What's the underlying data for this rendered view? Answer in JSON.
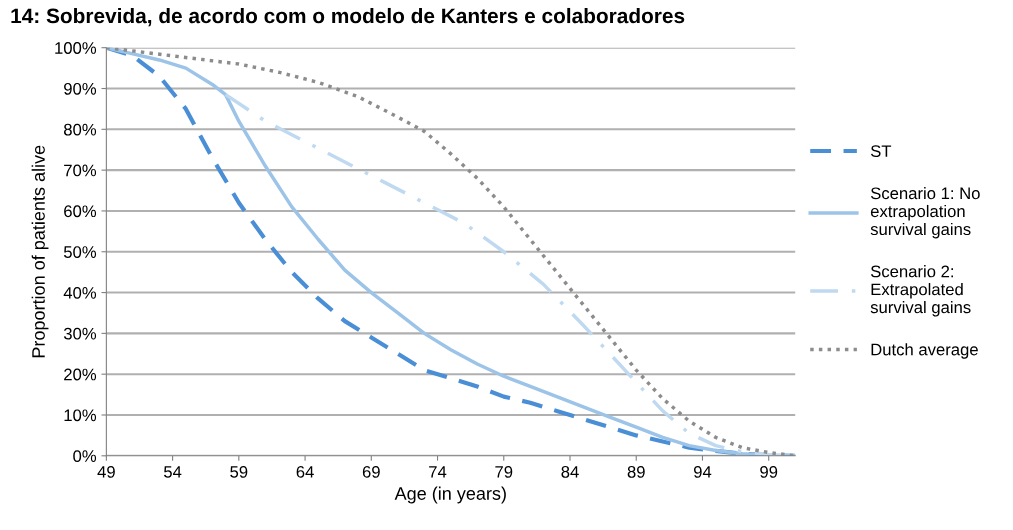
{
  "chart_data": {
    "type": "line",
    "title": "14: Sobrevida, de acordo com o modelo de Kanters e colaboradores",
    "xlabel": "Age (in years)",
    "ylabel": "Proportion of patients alive",
    "xlim": [
      49,
      101
    ],
    "xticks": [
      49,
      54,
      59,
      64,
      69,
      74,
      79,
      84,
      89,
      94,
      99
    ],
    "ylim": [
      0,
      100
    ],
    "yticks": [
      {
        "value": 0,
        "label": "0%"
      },
      {
        "value": 10,
        "label": "10%"
      },
      {
        "value": 20,
        "label": "20%"
      },
      {
        "value": 30,
        "label": "30%"
      },
      {
        "value": 40,
        "label": "40%"
      },
      {
        "value": 50,
        "label": "50%"
      },
      {
        "value": 60,
        "label": "60%"
      },
      {
        "value": 70,
        "label": "70%"
      },
      {
        "value": 80,
        "label": "80%"
      },
      {
        "value": 90,
        "label": "90%"
      },
      {
        "value": 100,
        "label": "100%"
      }
    ],
    "grid": "y",
    "legend": "right",
    "marker": "none",
    "series": [
      {
        "name": "ST",
        "color": "#4a8fd6",
        "line_style": "dashed",
        "x": [
          49,
          51,
          53,
          55,
          57,
          59,
          61,
          63,
          65,
          67,
          69,
          71,
          73,
          75,
          77,
          79,
          81,
          83,
          85,
          87,
          89,
          91,
          93,
          95,
          97,
          99,
          101
        ],
        "values": [
          100,
          98,
          93,
          85,
          73,
          62,
          53,
          45,
          38.5,
          33,
          29,
          25,
          21,
          19,
          17,
          14.5,
          13,
          11,
          9,
          7,
          5,
          3.5,
          2,
          1.2,
          0.5,
          0.1,
          0
        ]
      },
      {
        "name": "Scenario 1: No\nextrapolation\nsurvival gains",
        "color": "#9cc3e8",
        "line_style": "solid",
        "x": [
          49,
          51,
          53,
          55,
          57,
          58,
          59,
          61,
          63,
          65,
          67,
          69,
          71,
          73,
          75,
          77,
          79,
          81,
          83,
          85,
          87,
          89,
          91,
          93,
          95,
          97,
          99,
          101
        ],
        "values": [
          100,
          98.5,
          97,
          95,
          91,
          88.5,
          82,
          71,
          61,
          53,
          45.5,
          40,
          35,
          30,
          26,
          22.5,
          19.5,
          17,
          14.5,
          12,
          9.5,
          7,
          4.5,
          2.5,
          1.3,
          0.5,
          0.1,
          0
        ]
      },
      {
        "name": "Scenario 2:\nExtrapolated\nsurvival gains",
        "color": "#bfd9f0",
        "line_style": "dashdot",
        "x": [
          58,
          61,
          64,
          67,
          70,
          73,
          76,
          79,
          82,
          85,
          87,
          89,
          91,
          93,
          95,
          97,
          99,
          101
        ],
        "values": [
          88.5,
          82,
          77,
          72,
          67,
          62,
          57,
          50,
          42,
          32,
          25,
          18,
          11,
          5.5,
          2.5,
          1,
          0.3,
          0
        ]
      },
      {
        "name": "Dutch average",
        "color": "#8c8c8c",
        "line_style": "dotted",
        "x": [
          49,
          54,
          59,
          62,
          65,
          68,
          71,
          73,
          75,
          77,
          79,
          81,
          83,
          85,
          87,
          89,
          91,
          93,
          95,
          97,
          99,
          101
        ],
        "values": [
          100,
          98,
          96,
          94,
          91.5,
          88,
          83,
          79.5,
          74,
          68,
          61,
          53,
          45,
          37,
          29,
          21,
          14,
          8.5,
          4.5,
          2,
          0.8,
          0
        ]
      }
    ]
  }
}
